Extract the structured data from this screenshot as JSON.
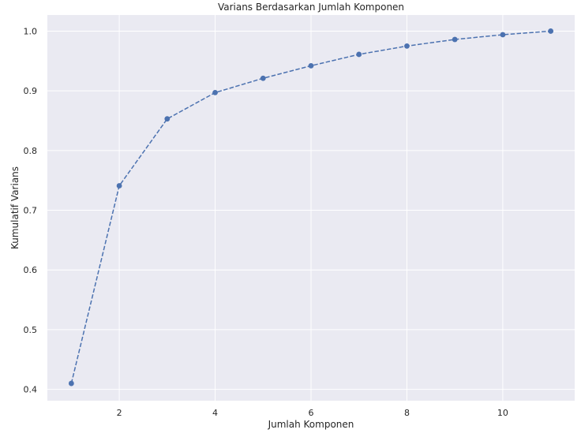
{
  "chart_data": {
    "type": "line",
    "title": "Varians Berdasarkan Jumlah Komponen",
    "xlabel": "Jumlah Komponen",
    "ylabel": "Kumulatif Varians",
    "x": [
      1,
      2,
      3,
      4,
      5,
      6,
      7,
      8,
      9,
      10,
      11
    ],
    "series": [
      {
        "name": "",
        "values": [
          0.41,
          0.741,
          0.853,
          0.897,
          0.921,
          0.942,
          0.961,
          0.975,
          0.986,
          0.994,
          1.0
        ],
        "color": "#4c72b0",
        "line_style": "dashed",
        "marker": "circle"
      }
    ],
    "xlim": [
      0.5,
      11.5
    ],
    "ylim": [
      0.381,
      1.027
    ],
    "xticks": [
      2,
      4,
      6,
      8,
      10
    ],
    "xtick_labels": [
      "2",
      "4",
      "6",
      "8",
      "10"
    ],
    "yticks": [
      0.4,
      0.5,
      0.6,
      0.7,
      0.8,
      0.9,
      1.0
    ],
    "ytick_labels": [
      "0.4",
      "0.5",
      "0.6",
      "0.7",
      "0.8",
      "0.9",
      "1.0"
    ],
    "grid": true,
    "background": "#eaeaf2",
    "grid_color": "#ffffff"
  }
}
